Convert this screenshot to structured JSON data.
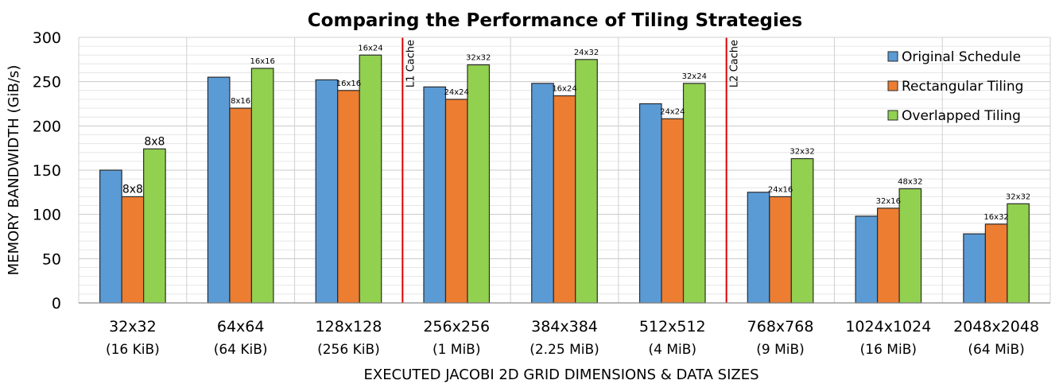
{
  "chart_data": {
    "type": "bar",
    "title": "Comparing the Performance of Tiling Strategies",
    "xlabel": "EXECUTED JACOBI 2D GRID DIMENSIONS & DATA SIZES",
    "ylabel": "MEMORY BANDWIDTH (GiB/s)",
    "ylim": [
      0,
      300
    ],
    "yticks": [
      "0",
      "50",
      "100",
      "150",
      "200",
      "250",
      "300"
    ],
    "grid": true,
    "legend_position": "top-right",
    "categories": [
      "32x32",
      "64x64",
      "128x128",
      "256x256",
      "384x384",
      "512x512",
      "768x768",
      "1024x1024",
      "2048x2048"
    ],
    "category_sizes": [
      "(16 KiB)",
      "(64 KiB)",
      "(256 KiB)",
      "(1 MiB)",
      "(2.25 MiB)",
      "(4 MiB)",
      "(9 MiB)",
      "(16 MiB)",
      "(64 MiB)"
    ],
    "series": [
      {
        "name": "Original Schedule",
        "color": "#5b9bd5",
        "values": [
          150,
          255,
          252,
          244,
          248,
          225,
          125,
          98,
          78
        ],
        "labels": [
          "",
          "",
          "",
          "",
          "",
          "",
          "",
          "",
          ""
        ]
      },
      {
        "name": "Rectangular Tiling",
        "color": "#ed7d31",
        "values": [
          120,
          220,
          240,
          230,
          234,
          208,
          120,
          107,
          89
        ],
        "labels": [
          "8x8",
          "8x16",
          "16x16",
          "24x24",
          "16x24",
          "24x24",
          "24x16",
          "32x16",
          "16x32"
        ]
      },
      {
        "name": "Overlapped Tiling",
        "color": "#92d050",
        "values": [
          174,
          265,
          280,
          269,
          275,
          248,
          163,
          129,
          112
        ],
        "labels": [
          "8x8",
          "16x16",
          "16x24",
          "32x32",
          "24x32",
          "32x24",
          "32x32",
          "48x32",
          "32x32"
        ]
      }
    ],
    "cache_markers": [
      {
        "label": "L1 Cache",
        "between_categories": [
          2,
          3
        ]
      },
      {
        "label": "L2 Cache",
        "between_categories": [
          5,
          6
        ]
      }
    ],
    "marker_color": "#e00000"
  }
}
